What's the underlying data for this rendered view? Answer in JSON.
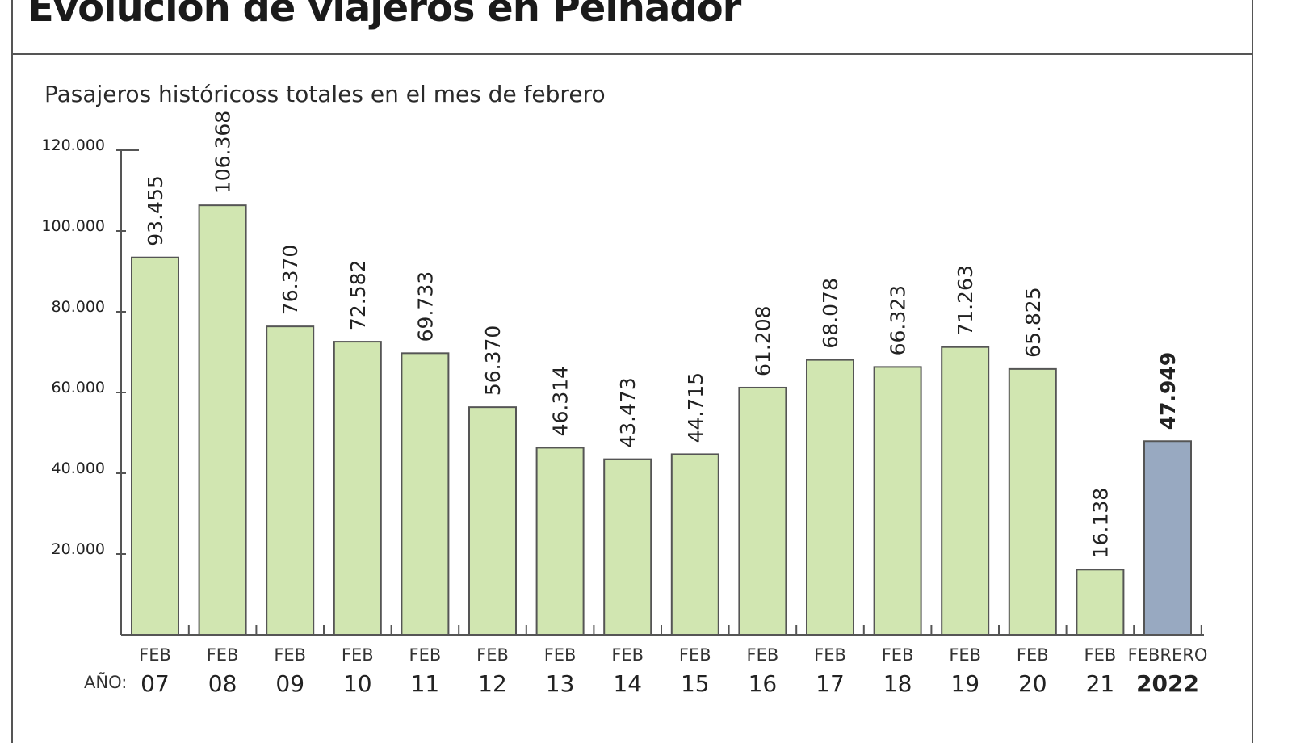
{
  "header": {
    "title": "Evolución de viajeros en Peinador",
    "subtitle": "Pasajeros históricoss totales en el mes de febrero"
  },
  "chart_data": {
    "type": "bar",
    "title": "Evolución de viajeros en Peinador",
    "subtitle": "Pasajeros históricoss totales en el mes de febrero",
    "x_prefix": "AÑO:",
    "categories": [
      {
        "line1": "FEB",
        "line2": "07"
      },
      {
        "line1": "FEB",
        "line2": "08"
      },
      {
        "line1": "FEB",
        "line2": "09"
      },
      {
        "line1": "FEB",
        "line2": "10"
      },
      {
        "line1": "FEB",
        "line2": "11"
      },
      {
        "line1": "FEB",
        "line2": "12"
      },
      {
        "line1": "FEB",
        "line2": "13"
      },
      {
        "line1": "FEB",
        "line2": "14"
      },
      {
        "line1": "FEB",
        "line2": "15"
      },
      {
        "line1": "FEB",
        "line2": "16"
      },
      {
        "line1": "FEB",
        "line2": "17"
      },
      {
        "line1": "FEB",
        "line2": "18"
      },
      {
        "line1": "FEB",
        "line2": "19"
      },
      {
        "line1": "FEB",
        "line2": "20"
      },
      {
        "line1": "FEB",
        "line2": "21"
      },
      {
        "line1": "FEBRERO",
        "line2": "2022"
      }
    ],
    "values": [
      93455,
      106368,
      76370,
      72582,
      69733,
      56370,
      46314,
      43473,
      44715,
      61208,
      68078,
      66323,
      71263,
      65825,
      16138,
      47949
    ],
    "value_labels": [
      "93.455",
      "106.368",
      "76.370",
      "72.582",
      "69.733",
      "56.370",
      "46.314",
      "43.473",
      "44.715",
      "61.208",
      "68.078",
      "66.323",
      "71.263",
      "65.825",
      "16.138",
      "47.949"
    ],
    "highlight_index": 15,
    "ylim": [
      0,
      120000
    ],
    "yticks": [
      20000,
      40000,
      60000,
      80000,
      100000,
      120000
    ],
    "ytick_labels": [
      "20.000",
      "40.000",
      "60.000",
      "80.000",
      "100.000",
      "120.000"
    ],
    "grid": false,
    "colors": {
      "bar": "#d1e6b1",
      "highlight_bar": "#98a9c1",
      "bar_stroke": "#555555",
      "axis": "#555555"
    }
  }
}
